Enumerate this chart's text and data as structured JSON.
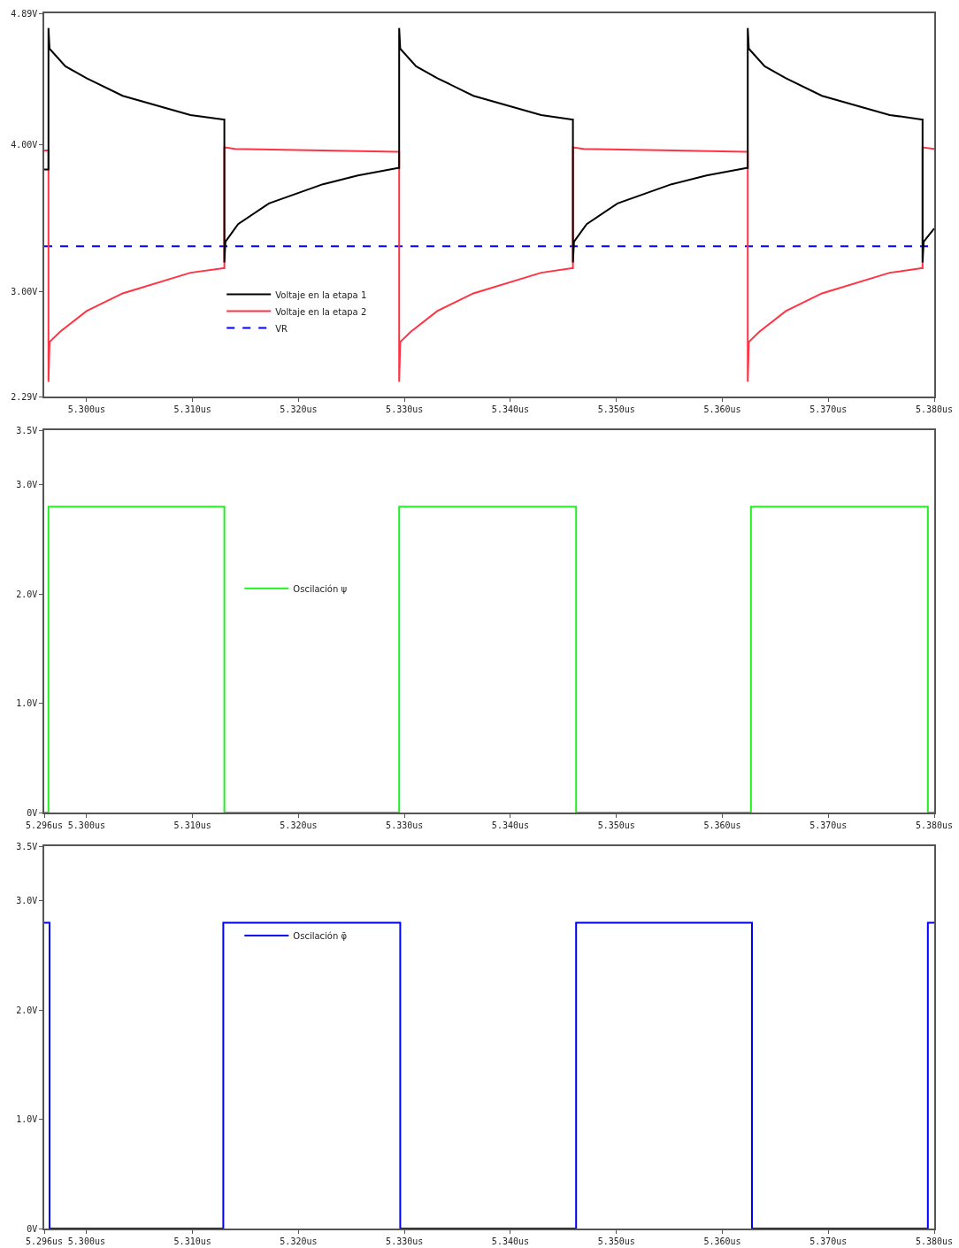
{
  "chart_data": [
    {
      "type": "line",
      "xlim": [
        5.296,
        5.38
      ],
      "ylim": [
        2.29,
        4.89
      ],
      "xticks": [
        {
          "value": 5.3,
          "label": "5.300us"
        },
        {
          "value": 5.31,
          "label": "5.310us"
        },
        {
          "value": 5.32,
          "label": "5.320us"
        },
        {
          "value": 5.33,
          "label": "5.330us"
        },
        {
          "value": 5.34,
          "label": "5.340us"
        },
        {
          "value": 5.35,
          "label": "5.350us"
        },
        {
          "value": 5.36,
          "label": "5.360us"
        },
        {
          "value": 5.37,
          "label": "5.370us"
        },
        {
          "value": 5.38,
          "label": "5.380us"
        }
      ],
      "yticks": [
        {
          "value": 2.29,
          "label": "2.29V"
        },
        {
          "value": 3.0,
          "label": "3.00V"
        },
        {
          "value": 4.0,
          "label": "4.00V"
        },
        {
          "value": 4.89,
          "label": "4.89V"
        }
      ],
      "legend": "bottom left",
      "series": [
        {
          "name": "Voltaje en la etapa 1",
          "color": "#000000",
          "line_style": "solid",
          "x": [
            5.296,
            5.2964,
            5.2964,
            5.2965,
            5.298,
            5.3,
            5.3034,
            5.3098,
            5.3129,
            5.313,
            5.313,
            5.3131,
            5.3143,
            5.3172,
            5.3223,
            5.3256,
            5.3294,
            5.3295,
            5.3295,
            5.3296,
            5.3311,
            5.3331,
            5.3365,
            5.3429,
            5.3458,
            5.3459,
            5.3459,
            5.346,
            5.3472,
            5.3501,
            5.3552,
            5.3585,
            5.3623,
            5.3624,
            5.3624,
            5.3625,
            5.364,
            5.366,
            5.3694,
            5.3758,
            5.3788,
            5.3789,
            5.3789,
            5.379,
            5.38
          ],
          "values": [
            3.83,
            3.83,
            4.79,
            4.65,
            4.53,
            4.45,
            4.33,
            4.2,
            4.17,
            4.17,
            3.2,
            3.34,
            3.46,
            3.6,
            3.73,
            3.79,
            3.84,
            3.84,
            4.79,
            4.65,
            4.53,
            4.45,
            4.33,
            4.2,
            4.17,
            4.17,
            3.2,
            3.34,
            3.46,
            3.6,
            3.73,
            3.79,
            3.84,
            3.84,
            4.79,
            4.65,
            4.53,
            4.45,
            4.33,
            4.2,
            4.17,
            4.17,
            3.2,
            3.34,
            3.43
          ]
        },
        {
          "name": "Voltaje en la etapa 2",
          "color": "#ff3344",
          "line_style": "solid",
          "x": [
            5.296,
            5.2964,
            5.2964,
            5.2965,
            5.2975,
            5.3,
            5.3034,
            5.3098,
            5.3129,
            5.313,
            5.313,
            5.314,
            5.3294,
            5.3295,
            5.3295,
            5.3296,
            5.3306,
            5.3331,
            5.3365,
            5.3429,
            5.3458,
            5.3459,
            5.3459,
            5.3469,
            5.3623,
            5.3624,
            5.3624,
            5.3625,
            5.3635,
            5.366,
            5.3694,
            5.3758,
            5.3788,
            5.3789,
            5.3789,
            5.38
          ],
          "values": [
            3.96,
            3.96,
            2.39,
            2.66,
            2.73,
            2.87,
            2.99,
            3.13,
            3.16,
            3.16,
            3.98,
            3.97,
            3.95,
            3.95,
            2.39,
            2.66,
            2.73,
            2.87,
            2.99,
            3.13,
            3.16,
            3.16,
            3.98,
            3.97,
            3.95,
            3.95,
            2.39,
            2.66,
            2.73,
            2.87,
            2.99,
            3.13,
            3.16,
            3.16,
            3.98,
            3.97
          ]
        },
        {
          "name": "VR",
          "color": "#0000ff",
          "line_style": "dashed",
          "x": [
            5.296,
            5.38
          ],
          "values": [
            3.31,
            3.31
          ]
        }
      ]
    },
    {
      "type": "line",
      "xlim": [
        5.296,
        5.38
      ],
      "ylim": [
        0,
        3.5
      ],
      "xticks": [
        {
          "value": 5.296,
          "label": "5.296us"
        },
        {
          "value": 5.3,
          "label": "5.300us"
        },
        {
          "value": 5.31,
          "label": "5.310us"
        },
        {
          "value": 5.32,
          "label": "5.320us"
        },
        {
          "value": 5.33,
          "label": "5.330us"
        },
        {
          "value": 5.34,
          "label": "5.340us"
        },
        {
          "value": 5.35,
          "label": "5.350us"
        },
        {
          "value": 5.36,
          "label": "5.360us"
        },
        {
          "value": 5.37,
          "label": "5.370us"
        },
        {
          "value": 5.38,
          "label": "5.380us"
        }
      ],
      "yticks": [
        {
          "value": 0,
          "label": "0V"
        },
        {
          "value": 1,
          "label": "1.0V"
        },
        {
          "value": 2,
          "label": "2.0V"
        },
        {
          "value": 3,
          "label": "3.0V"
        },
        {
          "value": 3.5,
          "label": "3.5V"
        }
      ],
      "legend": "left",
      "series": [
        {
          "name": "Oscilación ψ",
          "color": "#22ee22",
          "line_style": "solid",
          "x": [
            5.296,
            5.2964,
            5.2964,
            5.313,
            5.313,
            5.3295,
            5.3295,
            5.3462,
            5.3462,
            5.3627,
            5.3627,
            5.3794,
            5.3794,
            5.38
          ],
          "values": [
            0,
            0,
            2.8,
            2.8,
            0,
            0,
            2.8,
            2.8,
            0,
            0,
            2.8,
            2.8,
            0,
            0
          ]
        }
      ]
    },
    {
      "type": "line",
      "xlim": [
        5.296,
        5.38
      ],
      "ylim": [
        0,
        3.5
      ],
      "xticks": [
        {
          "value": 5.296,
          "label": "5.296us"
        },
        {
          "value": 5.3,
          "label": "5.300us"
        },
        {
          "value": 5.31,
          "label": "5.310us"
        },
        {
          "value": 5.32,
          "label": "5.320us"
        },
        {
          "value": 5.33,
          "label": "5.330us"
        },
        {
          "value": 5.34,
          "label": "5.340us"
        },
        {
          "value": 5.35,
          "label": "5.350us"
        },
        {
          "value": 5.36,
          "label": "5.360us"
        },
        {
          "value": 5.37,
          "label": "5.370us"
        },
        {
          "value": 5.38,
          "label": "5.380us"
        }
      ],
      "yticks": [
        {
          "value": 0,
          "label": "0V"
        },
        {
          "value": 1,
          "label": "1.0V"
        },
        {
          "value": 2,
          "label": "2.0V"
        },
        {
          "value": 3,
          "label": "3.0V"
        },
        {
          "value": 3.5,
          "label": "3.5V"
        }
      ],
      "legend": "top left",
      "series": [
        {
          "name": "Oscilación φ̄",
          "color": "#0000ff",
          "line_style": "solid",
          "x": [
            5.296,
            5.2965,
            5.2965,
            5.3129,
            5.3129,
            5.3296,
            5.3296,
            5.3462,
            5.3462,
            5.3628,
            5.3628,
            5.3794,
            5.3794,
            5.38
          ],
          "values": [
            2.8,
            2.8,
            0,
            0,
            2.8,
            2.8,
            0,
            0,
            2.8,
            2.8,
            0,
            0,
            2.8,
            2.8
          ]
        }
      ]
    }
  ]
}
